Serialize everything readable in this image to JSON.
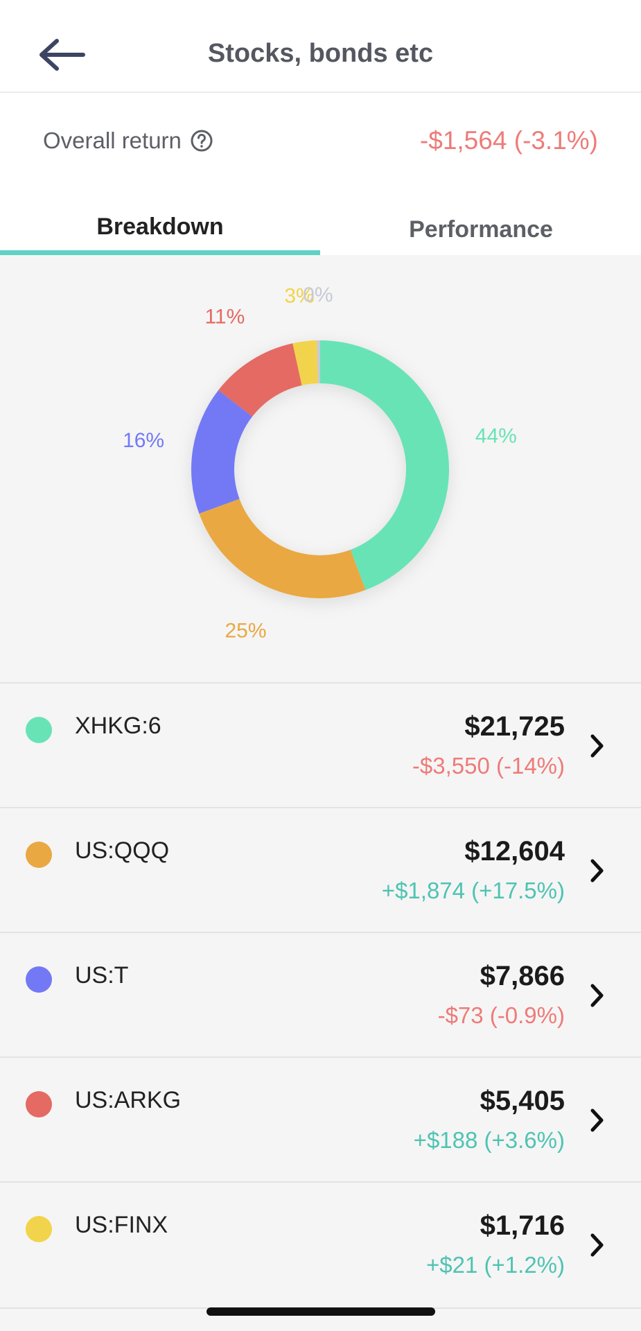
{
  "header": {
    "title": "Stocks, bonds etc",
    "back_icon": "arrow-left-icon"
  },
  "overall_return": {
    "label": "Overall return",
    "value": "-$1,564 (-3.1%)",
    "help_icon": "question-circle-icon"
  },
  "tabs": [
    {
      "label": "Breakdown",
      "active": true
    },
    {
      "label": "Performance",
      "active": false
    }
  ],
  "chart_data": {
    "type": "pie",
    "donut": true,
    "slices": [
      {
        "label": "44%",
        "value": 44,
        "color": "#68e3b6"
      },
      {
        "label": "25%",
        "value": 25,
        "color": "#eaa842"
      },
      {
        "label": "16%",
        "value": 16,
        "color": "#7379f5"
      },
      {
        "label": "11%",
        "value": 11,
        "color": "#e46a63"
      },
      {
        "label": "3%",
        "value": 3,
        "color": "#f1d44b"
      },
      {
        "label": "0%",
        "value": 0.4,
        "color": "#c7c9d6"
      }
    ]
  },
  "holdings": [
    {
      "ticker": "XHKG:6",
      "amount": "$21,725",
      "change": "-$3,550 (-14%)",
      "color": "#68e3b6",
      "positive": false
    },
    {
      "ticker": "US:QQQ",
      "amount": "$12,604",
      "change": "+$1,874 (+17.5%)",
      "color": "#eaa842",
      "positive": true
    },
    {
      "ticker": "US:T",
      "amount": "$7,866",
      "change": "-$73 (-0.9%)",
      "color": "#7379f5",
      "positive": false
    },
    {
      "ticker": "US:ARKG",
      "amount": "$5,405",
      "change": "+$188 (+3.6%)",
      "color": "#e46a63",
      "positive": true
    },
    {
      "ticker": "US:FINX",
      "amount": "$1,716",
      "change": "+$21 (+1.2%)",
      "color": "#f1d44b",
      "positive": true
    }
  ],
  "colors": {
    "negative": "#ee7b78",
    "positive": "#4fc3b2",
    "accent": "#5fd1c5"
  }
}
